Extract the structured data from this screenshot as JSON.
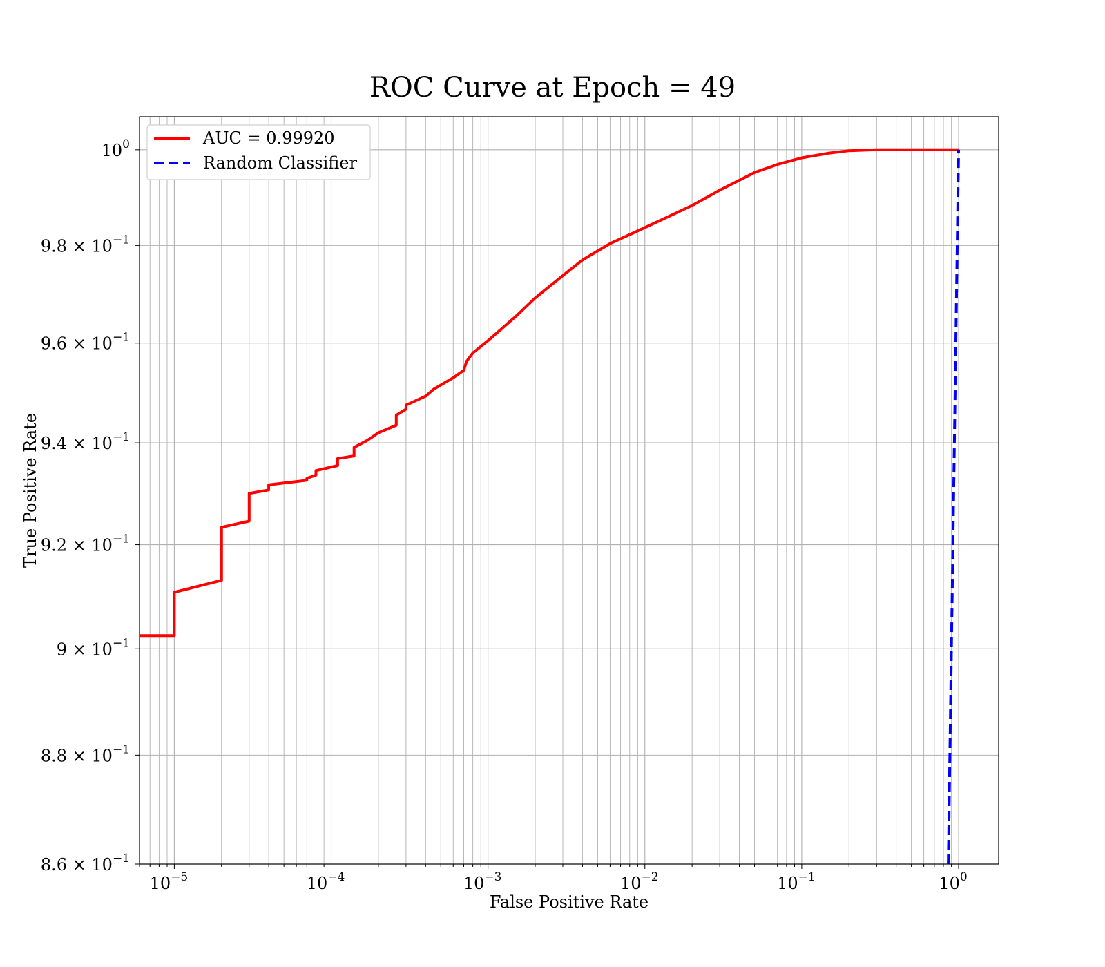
{
  "chart_data": {
    "type": "line",
    "title": "ROC Curve at Epoch = 49",
    "xlabel": "False Positive Rate",
    "ylabel": "True Positive Rate",
    "xscale": "log",
    "yscale": "log",
    "xlim": [
      6e-06,
      1.8
    ],
    "ylim": [
      0.86,
      1.007
    ],
    "grid": true,
    "grid_minor": true,
    "legend_position": "upper-left",
    "x_ticks": [
      {
        "value": 1e-05,
        "base": "10",
        "exp": "−5"
      },
      {
        "value": 0.0001,
        "base": "10",
        "exp": "−4"
      },
      {
        "value": 0.001,
        "base": "10",
        "exp": "−3"
      },
      {
        "value": 0.01,
        "base": "10",
        "exp": "−2"
      },
      {
        "value": 0.1,
        "base": "10",
        "exp": "−1"
      },
      {
        "value": 1,
        "base": "10",
        "exp": "0"
      }
    ],
    "y_ticks": [
      {
        "value": 1.0,
        "base": "10",
        "exp": "0"
      },
      {
        "value": 0.98,
        "base": "9.8 × 10",
        "exp": "−1"
      },
      {
        "value": 0.96,
        "base": "9.6 × 10",
        "exp": "−1"
      },
      {
        "value": 0.94,
        "base": "9.4 × 10",
        "exp": "−1"
      },
      {
        "value": 0.92,
        "base": "9.2 × 10",
        "exp": "−1"
      },
      {
        "value": 0.9,
        "base": "9 × 10",
        "exp": "−1"
      },
      {
        "value": 0.88,
        "base": "8.8 × 10",
        "exp": "−1"
      },
      {
        "value": 0.86,
        "base": "8.6 × 10",
        "exp": "−1"
      }
    ],
    "series": [
      {
        "name": "AUC = 0.99920",
        "color": "#ff0000",
        "style": "solid",
        "x": [
          6e-06,
          1e-05,
          1e-05,
          2e-05,
          2e-05,
          3e-05,
          3e-05,
          4e-05,
          4e-05,
          7e-05,
          7e-05,
          8e-05,
          8e-05,
          0.00011,
          0.00011,
          0.00014,
          0.00014,
          0.00017,
          0.0002,
          0.00026,
          0.00026,
          0.0003,
          0.0003,
          0.0004,
          0.00045,
          0.0006,
          0.0007,
          0.00073,
          0.0008,
          0.001,
          0.0015,
          0.002,
          0.003,
          0.004,
          0.006,
          0.01,
          0.02,
          0.03,
          0.05,
          0.07,
          0.1,
          0.15,
          0.2,
          0.3,
          1.0
        ],
        "y": [
          0.9025,
          0.9025,
          0.9108,
          0.9131,
          0.9234,
          0.9246,
          0.93,
          0.9307,
          0.9317,
          0.9326,
          0.933,
          0.9336,
          0.9345,
          0.9355,
          0.9369,
          0.9374,
          0.9391,
          0.9405,
          0.942,
          0.9435,
          0.9455,
          0.9467,
          0.9475,
          0.9493,
          0.9507,
          0.953,
          0.9545,
          0.9563,
          0.958,
          0.9605,
          0.9654,
          0.9692,
          0.9738,
          0.977,
          0.9804,
          0.9837,
          0.9883,
          0.9915,
          0.9952,
          0.9969,
          0.9983,
          0.9993,
          0.9998,
          1.0,
          1.0
        ]
      },
      {
        "name": "Random Classifier",
        "color": "#0000ff",
        "style": "dashed",
        "x": [
          0.86,
          1.0
        ],
        "y": [
          0.86,
          1.0
        ]
      }
    ]
  }
}
